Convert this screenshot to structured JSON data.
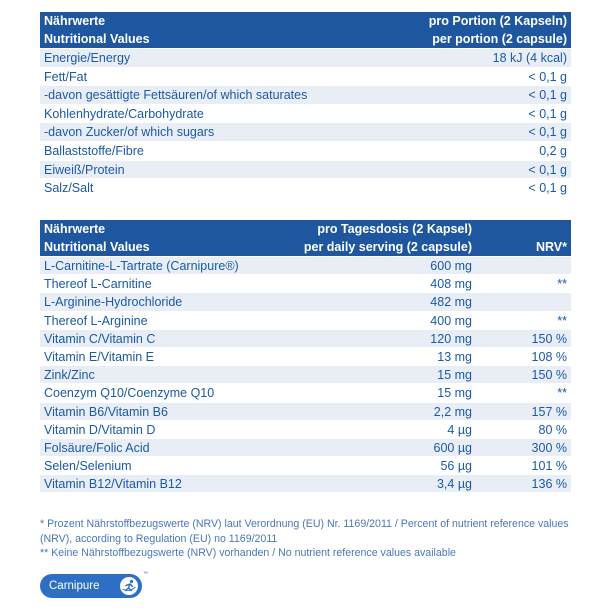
{
  "table1": {
    "header_de": "Nährwerte",
    "header_en": "Nutritional Values",
    "portion_de": "pro Portion (2 Kapseln)",
    "portion_en": "per portion (2 capsule)",
    "rows": [
      {
        "label": "Energie/Energy",
        "value": "18 kJ (4 kcal)"
      },
      {
        "label": "Fett/Fat",
        "value": "< 0,1 g"
      },
      {
        "label": "-davon gesättigte Fettsäuren/of which saturates",
        "value": "< 0,1 g"
      },
      {
        "label": "Kohlenhydrate/Carbohydrate",
        "value": "< 0,1 g"
      },
      {
        "label": "-davon Zucker/of which sugars",
        "value": "< 0,1 g"
      },
      {
        "label": "Ballaststoffe/Fibre",
        "value": "0,2 g"
      },
      {
        "label": "Eiweiß/Protein",
        "value": "< 0,1 g"
      },
      {
        "label": "Salz/Salt",
        "value": "< 0,1 g"
      }
    ]
  },
  "table2": {
    "header_de": "Nährwerte",
    "header_en": "Nutritional Values",
    "serving_de": "pro Tagesdosis (2 Kapsel)",
    "serving_en": "per daily serving (2 capsule)",
    "nrv_header": "NRV*",
    "rows": [
      {
        "label": "L-Carnitine-L-Tartrate (Carnipure®)",
        "amount": "600 mg",
        "nrv": ""
      },
      {
        "label": "Thereof L-Carnitine",
        "amount": "408 mg",
        "nrv": "**"
      },
      {
        "label": "L-Arginine-Hydrochloride",
        "amount": "482 mg",
        "nrv": ""
      },
      {
        "label": "Thereof L-Arginine",
        "amount": "400 mg",
        "nrv": "**"
      },
      {
        "label": "Vitamin C/Vitamin C",
        "amount": "120 mg",
        "nrv": "150 %"
      },
      {
        "label": "Vitamin E/Vitamin E",
        "amount": "13 mg",
        "nrv": "108 %"
      },
      {
        "label": "Zink/Zinc",
        "amount": "15 mg",
        "nrv": "150 %"
      },
      {
        "label": "Coenzym Q10/Coenzyme Q10",
        "amount": "15 mg",
        "nrv": "**"
      },
      {
        "label": "Vitamin B6/Vitamin B6",
        "amount": "2,2 mg",
        "nrv": "157 %"
      },
      {
        "label": "Vitamin D/Vitamin D",
        "amount": "4 µg",
        "nrv": "80 %"
      },
      {
        "label": "Folsäure/Folic Acid",
        "amount": "600 µg",
        "nrv": "300 %"
      },
      {
        "label": "Selen/Selenium",
        "amount": "56 µg",
        "nrv": "101 %"
      },
      {
        "label": "Vitamin B12/Vitamin B12",
        "amount": "3,4 µg",
        "nrv": "136 %"
      }
    ]
  },
  "footnotes": {
    "f1": "* Prozent Nährstoffbezugswerte (NRV) laut Verordnung (EU) Nr. 1169/2011 / Percent of nutrient reference values (NRV), according to Regulation (EU) no 1169/2011",
    "f2": "** Keine Nährstoffbezugswerte (NRV) vorhanden / No nutrient reference values available"
  },
  "logo": {
    "text": "Carnipure",
    "tm": "™"
  },
  "colors": {
    "header_bg": "#1e56a0",
    "row_shade": "#e9eef6",
    "text": "#1a5aa6"
  }
}
